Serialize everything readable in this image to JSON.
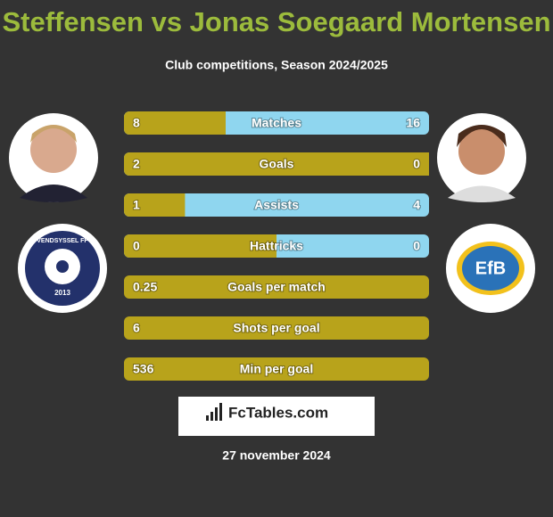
{
  "header": {
    "title": "Steffensen vs Jonas Soegaard Mortensen",
    "subtitle": "Club competitions, Season 2024/2025"
  },
  "badges": {
    "left": {
      "name": "VENDSYSSEL FF",
      "year": "2013"
    },
    "right": {
      "name": "EfB"
    }
  },
  "rows": [
    {
      "label": "Matches",
      "left": 8,
      "right": 16
    },
    {
      "label": "Goals",
      "left": 2,
      "right": 0
    },
    {
      "label": "Assists",
      "left": 1,
      "right": 4
    },
    {
      "label": "Hattricks",
      "left": 0,
      "right": 0
    },
    {
      "label": "Goals per match",
      "left": 0.25
    },
    {
      "label": "Shots per goal",
      "left": 6
    },
    {
      "label": "Min per goal",
      "left": 536
    }
  ],
  "brand": "FcTables.com",
  "date": "27 november 2024"
}
